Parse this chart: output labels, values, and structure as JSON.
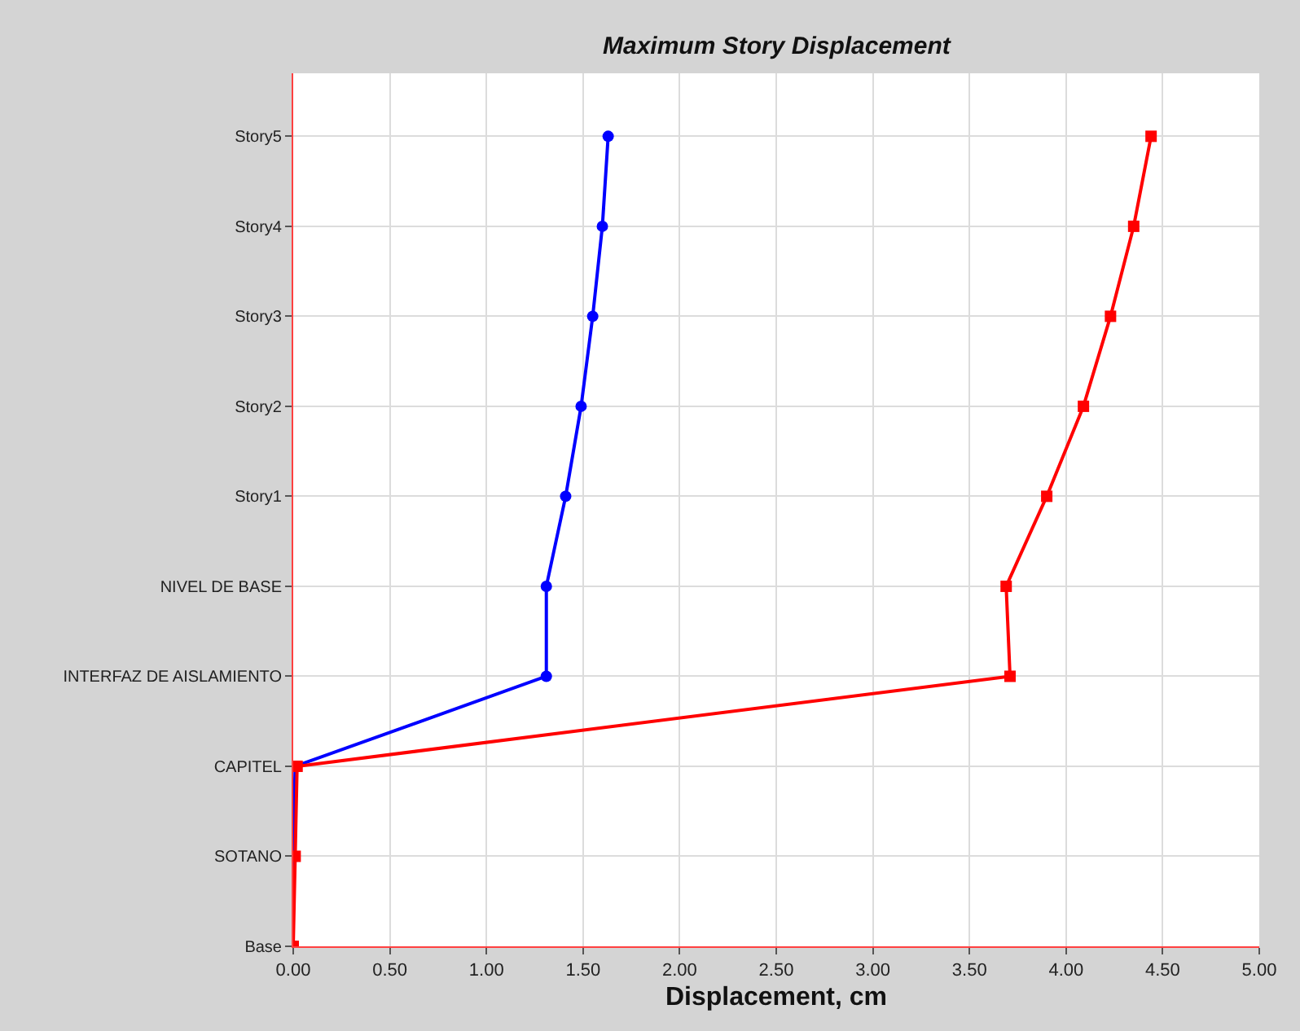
{
  "chart_data": {
    "type": "line",
    "orientation": "horizontal",
    "title": "Maximum Story Displacement",
    "xlabel": "Displacement, cm",
    "xlim": [
      0,
      5
    ],
    "xticks": [
      {
        "value": 0,
        "label": "0.00"
      },
      {
        "value": 0.5,
        "label": "0.50"
      },
      {
        "value": 1,
        "label": "1.00"
      },
      {
        "value": 1.5,
        "label": "1.50"
      },
      {
        "value": 2,
        "label": "2.00"
      },
      {
        "value": 2.5,
        "label": "2.50"
      },
      {
        "value": 3,
        "label": "3.00"
      },
      {
        "value": 3.5,
        "label": "3.50"
      },
      {
        "value": 4,
        "label": "4.00"
      },
      {
        "value": 4.5,
        "label": "4.50"
      },
      {
        "value": 5,
        "label": "5.00"
      }
    ],
    "categories": [
      "Story5",
      "Story4",
      "Story3",
      "Story2",
      "Story1",
      "NIVEL DE BASE",
      "INTERFAZ DE AISLAMIENTO",
      "CAPITEL",
      "SOTANO",
      "Base"
    ],
    "series": [
      {
        "color": "#0000ff",
        "marker": "circle",
        "values": [
          1.63,
          1.6,
          1.55,
          1.49,
          1.41,
          1.31,
          1.31,
          0.01,
          0,
          0
        ]
      },
      {
        "color": "#ff0000",
        "marker": "square",
        "values": [
          4.44,
          4.35,
          4.23,
          4.09,
          3.9,
          3.69,
          3.71,
          0.02,
          0.01,
          0
        ]
      }
    ],
    "grid": true,
    "line_style": "solid"
  }
}
